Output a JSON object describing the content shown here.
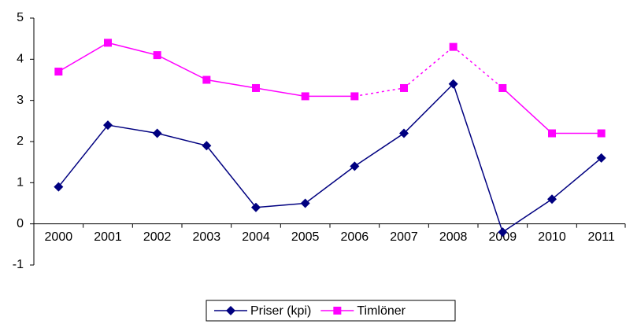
{
  "chart_data": {
    "type": "line",
    "categories": [
      "2000",
      "2001",
      "2002",
      "2003",
      "2004",
      "2005",
      "2006",
      "2007",
      "2008",
      "2009",
      "2010",
      "2011"
    ],
    "series": [
      {
        "name": "Priser (kpi)",
        "color": "#000080",
        "marker": "diamond",
        "values": [
          0.9,
          2.4,
          2.2,
          1.9,
          0.4,
          0.5,
          1.4,
          2.2,
          3.4,
          -0.2,
          0.6,
          1.6
        ]
      },
      {
        "name": "Timlöner",
        "color": "#ff00ff",
        "marker": "square",
        "values": [
          3.7,
          4.4,
          4.1,
          3.5,
          3.3,
          3.1,
          3.1,
          3.3,
          4.3,
          3.3,
          2.2,
          2.2
        ],
        "dashed_categories": [
          "2006",
          "2007",
          "2008",
          "2009"
        ]
      }
    ],
    "ylim": [
      -1,
      5
    ],
    "yticks": [
      -1,
      0,
      1,
      2,
      3,
      4,
      5
    ],
    "legend": "bottom"
  }
}
